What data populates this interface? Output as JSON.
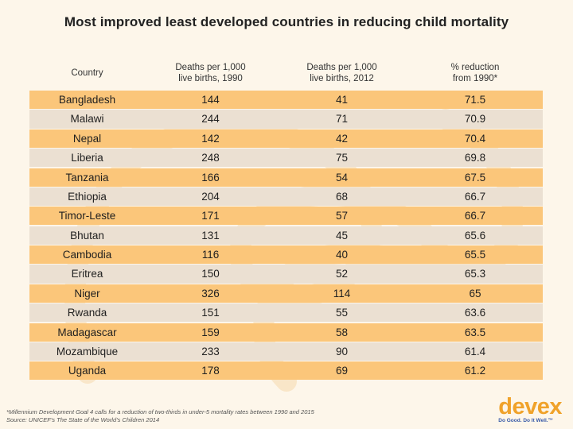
{
  "title": "Most improved least developed countries in reducing child mortality",
  "chart_data": {
    "type": "table",
    "columns": [
      "Country",
      "Deaths per 1,000 live births, 1990",
      "Deaths per 1,000 live births, 2012",
      "% reduction from 1990*"
    ],
    "header_lines": [
      [
        "Country"
      ],
      [
        "Deaths per 1,000",
        "live births, 1990"
      ],
      [
        "Deaths per 1,000",
        "live births, 2012"
      ],
      [
        "% reduction",
        "from 1990*"
      ]
    ],
    "rows": [
      [
        "Bangladesh",
        "144",
        "41",
        "71.5"
      ],
      [
        "Malawi",
        "244",
        "71",
        "70.9"
      ],
      [
        "Nepal",
        "142",
        "42",
        "70.4"
      ],
      [
        "Liberia",
        "248",
        "75",
        "69.8"
      ],
      [
        "Tanzania",
        "166",
        "54",
        "67.5"
      ],
      [
        "Ethiopia",
        "204",
        "68",
        "66.7"
      ],
      [
        "Timor-Leste",
        "171",
        "57",
        "66.7"
      ],
      [
        "Bhutan",
        "131",
        "45",
        "65.6"
      ],
      [
        "Cambodia",
        "116",
        "40",
        "65.5"
      ],
      [
        "Eritrea",
        "150",
        "52",
        "65.3"
      ],
      [
        "Niger",
        "326",
        "114",
        "65"
      ],
      [
        "Rwanda",
        "151",
        "55",
        "63.6"
      ],
      [
        "Madagascar",
        "159",
        "58",
        "63.5"
      ],
      [
        "Mozambique",
        "233",
        "90",
        "61.4"
      ],
      [
        "Uganda",
        "178",
        "69",
        "61.2"
      ]
    ]
  },
  "footnote": {
    "line1": "*Millennium Development Goal 4 calls for a reduction of two-thirds in under-5 mortality rates between 1990 and 2015",
    "line2": "Source: UNICEF's The State of the World's Children 2014"
  },
  "logo": {
    "word": "devex",
    "tagline": "Do Good. Do It Well.™"
  },
  "colors": {
    "row_odd": "#fbc67a",
    "row_even": "#ebe0d2",
    "logo": "#f0a22a"
  }
}
